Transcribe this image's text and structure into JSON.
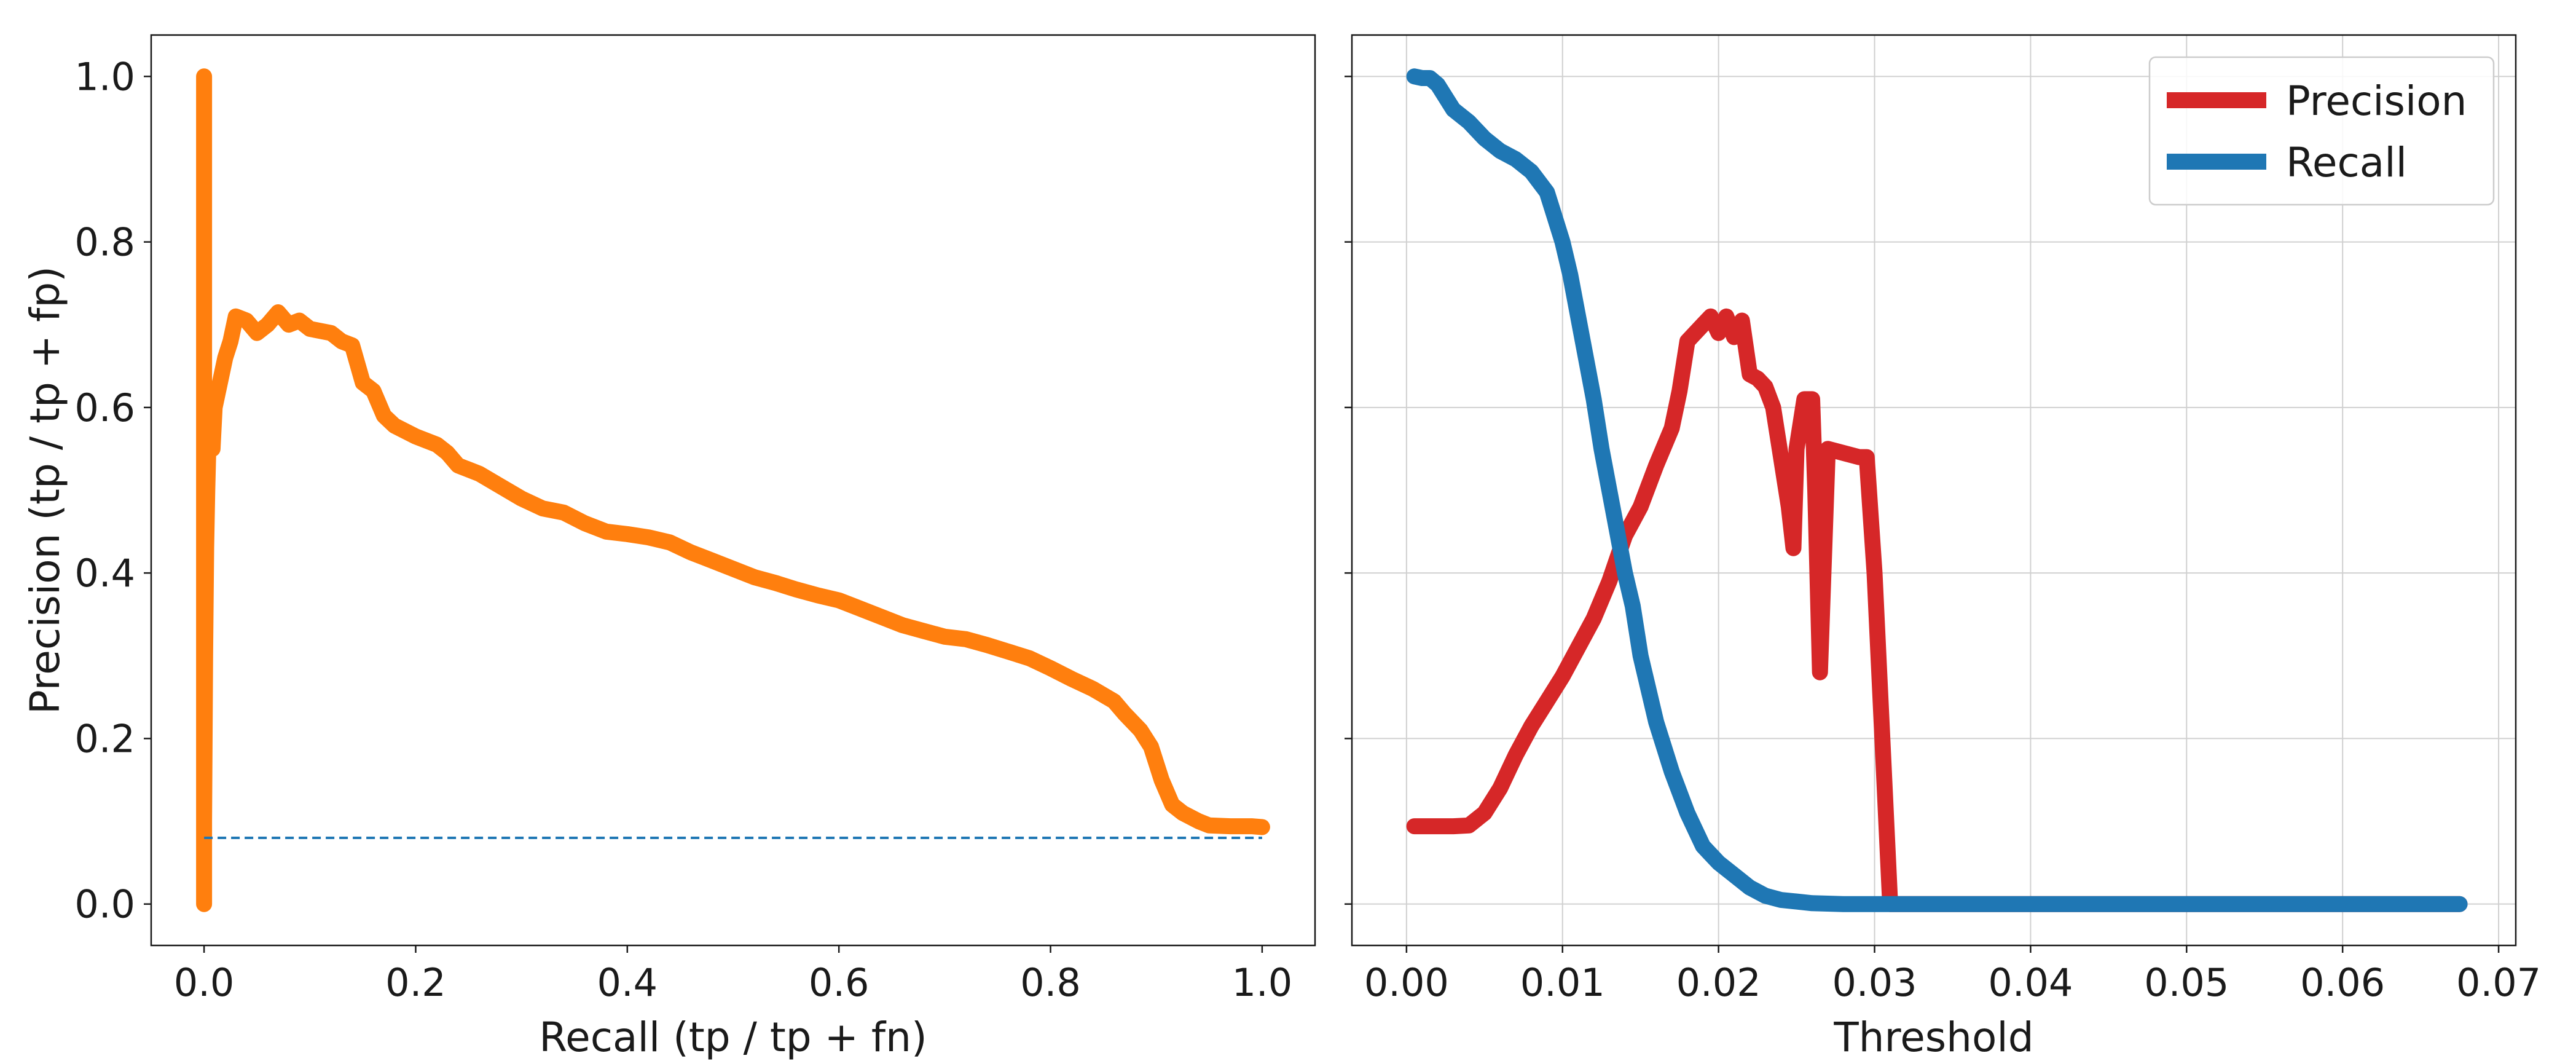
{
  "chart_data": [
    {
      "type": "line",
      "xlabel": "Recall (tp / tp + fn)",
      "ylabel": "Precision (tp / tp + fp)",
      "xlim": [
        -0.05,
        1.05
      ],
      "ylim": [
        -0.05,
        1.05
      ],
      "xticks": [
        0.0,
        0.2,
        0.4,
        0.6,
        0.8,
        1.0
      ],
      "yticks": [
        0.0,
        0.2,
        0.4,
        0.6,
        0.8,
        1.0
      ],
      "xtick_labels": [
        "0.0",
        "0.2",
        "0.4",
        "0.6",
        "0.8",
        "1.0"
      ],
      "ytick_labels": [
        "0.0",
        "0.2",
        "0.4",
        "0.6",
        "0.8",
        "1.0"
      ],
      "grid": false,
      "series": [
        {
          "color": "#ff7f0e",
          "style": "solid",
          "points": [
            [
              1.0,
              0.093
            ],
            [
              0.99,
              0.094
            ],
            [
              0.97,
              0.094
            ],
            [
              0.95,
              0.095
            ],
            [
              0.94,
              0.1
            ],
            [
              0.925,
              0.11
            ],
            [
              0.915,
              0.12
            ],
            [
              0.905,
              0.15
            ],
            [
              0.9,
              0.17
            ],
            [
              0.895,
              0.19
            ],
            [
              0.885,
              0.21
            ],
            [
              0.87,
              0.23
            ],
            [
              0.86,
              0.245
            ],
            [
              0.84,
              0.26
            ],
            [
              0.82,
              0.272
            ],
            [
              0.8,
              0.285
            ],
            [
              0.78,
              0.297
            ],
            [
              0.76,
              0.305
            ],
            [
              0.74,
              0.313
            ],
            [
              0.72,
              0.32
            ],
            [
              0.7,
              0.323
            ],
            [
              0.68,
              0.33
            ],
            [
              0.66,
              0.337
            ],
            [
              0.64,
              0.347
            ],
            [
              0.62,
              0.357
            ],
            [
              0.6,
              0.367
            ],
            [
              0.58,
              0.373
            ],
            [
              0.56,
              0.38
            ],
            [
              0.54,
              0.388
            ],
            [
              0.52,
              0.395
            ],
            [
              0.5,
              0.405
            ],
            [
              0.48,
              0.415
            ],
            [
              0.46,
              0.425
            ],
            [
              0.44,
              0.437
            ],
            [
              0.42,
              0.443
            ],
            [
              0.4,
              0.447
            ],
            [
              0.38,
              0.45
            ],
            [
              0.36,
              0.46
            ],
            [
              0.34,
              0.473
            ],
            [
              0.32,
              0.478
            ],
            [
              0.3,
              0.49
            ],
            [
              0.28,
              0.505
            ],
            [
              0.26,
              0.52
            ],
            [
              0.24,
              0.53
            ],
            [
              0.23,
              0.545
            ],
            [
              0.22,
              0.555
            ],
            [
              0.2,
              0.565
            ],
            [
              0.18,
              0.578
            ],
            [
              0.17,
              0.59
            ],
            [
              0.16,
              0.62
            ],
            [
              0.15,
              0.63
            ],
            [
              0.14,
              0.675
            ],
            [
              0.13,
              0.68
            ],
            [
              0.12,
              0.69
            ],
            [
              0.1,
              0.695
            ],
            [
              0.09,
              0.705
            ],
            [
              0.08,
              0.7
            ],
            [
              0.07,
              0.715
            ],
            [
              0.06,
              0.7
            ],
            [
              0.05,
              0.69
            ],
            [
              0.04,
              0.705
            ],
            [
              0.03,
              0.71
            ],
            [
              0.025,
              0.68
            ],
            [
              0.02,
              0.66
            ],
            [
              0.015,
              0.63
            ],
            [
              0.01,
              0.6
            ],
            [
              0.008,
              0.55
            ],
            [
              0.005,
              0.6
            ],
            [
              0.003,
              0.5
            ],
            [
              0.002,
              0.43
            ],
            [
              0.001,
              0.3
            ],
            [
              0.0,
              0.1
            ],
            [
              0.0,
              0.0
            ],
            [
              0.0,
              1.0
            ]
          ]
        },
        {
          "color": "#1f77b4",
          "style": "dashed",
          "points": [
            [
              0.0,
              0.08
            ],
            [
              1.0,
              0.08
            ]
          ]
        }
      ]
    },
    {
      "type": "line",
      "xlabel": "Threshold",
      "ylabel": "",
      "xlim": [
        -0.0035,
        0.0711
      ],
      "ylim": [
        -0.05,
        1.05
      ],
      "xticks": [
        0.0,
        0.01,
        0.02,
        0.03,
        0.04,
        0.05,
        0.06,
        0.07
      ],
      "yticks": [
        0.0,
        0.2,
        0.4,
        0.6,
        0.8,
        1.0
      ],
      "xtick_labels": [
        "0.00",
        "0.01",
        "0.02",
        "0.03",
        "0.04",
        "0.05",
        "0.06",
        "0.07"
      ],
      "grid": true,
      "legend_position": "top-right",
      "series": [
        {
          "name": "Precision",
          "color": "#d62728",
          "points": [
            [
              0.0005,
              0.094
            ],
            [
              0.002,
              0.094
            ],
            [
              0.003,
              0.094
            ],
            [
              0.004,
              0.095
            ],
            [
              0.005,
              0.11
            ],
            [
              0.006,
              0.14
            ],
            [
              0.007,
              0.18
            ],
            [
              0.008,
              0.215
            ],
            [
              0.009,
              0.245
            ],
            [
              0.01,
              0.275
            ],
            [
              0.011,
              0.31
            ],
            [
              0.012,
              0.345
            ],
            [
              0.013,
              0.39
            ],
            [
              0.014,
              0.445
            ],
            [
              0.015,
              0.48
            ],
            [
              0.016,
              0.53
            ],
            [
              0.017,
              0.575
            ],
            [
              0.0175,
              0.62
            ],
            [
              0.018,
              0.68
            ],
            [
              0.019,
              0.7
            ],
            [
              0.0195,
              0.71
            ],
            [
              0.02,
              0.69
            ],
            [
              0.0205,
              0.71
            ],
            [
              0.021,
              0.685
            ],
            [
              0.0215,
              0.705
            ],
            [
              0.022,
              0.64
            ],
            [
              0.0225,
              0.635
            ],
            [
              0.023,
              0.625
            ],
            [
              0.0235,
              0.6
            ],
            [
              0.024,
              0.54
            ],
            [
              0.0245,
              0.48
            ],
            [
              0.0248,
              0.43
            ],
            [
              0.025,
              0.55
            ],
            [
              0.0255,
              0.61
            ],
            [
              0.026,
              0.61
            ],
            [
              0.0262,
              0.5
            ],
            [
              0.0265,
              0.28
            ],
            [
              0.027,
              0.55
            ],
            [
              0.029,
              0.54
            ],
            [
              0.0295,
              0.54
            ],
            [
              0.03,
              0.4
            ],
            [
              0.0305,
              0.2
            ],
            [
              0.031,
              0.0
            ],
            [
              0.0675,
              0.0
            ]
          ]
        },
        {
          "name": "Recall",
          "color": "#1f77b4",
          "points": [
            [
              0.0005,
              1.0
            ],
            [
              0.001,
              0.998
            ],
            [
              0.0015,
              0.998
            ],
            [
              0.002,
              0.99
            ],
            [
              0.0025,
              0.975
            ],
            [
              0.003,
              0.96
            ],
            [
              0.004,
              0.945
            ],
            [
              0.005,
              0.925
            ],
            [
              0.006,
              0.91
            ],
            [
              0.007,
              0.9
            ],
            [
              0.008,
              0.885
            ],
            [
              0.009,
              0.86
            ],
            [
              0.0095,
              0.83
            ],
            [
              0.01,
              0.8
            ],
            [
              0.0105,
              0.76
            ],
            [
              0.011,
              0.71
            ],
            [
              0.0115,
              0.66
            ],
            [
              0.012,
              0.61
            ],
            [
              0.0125,
              0.55
            ],
            [
              0.013,
              0.5
            ],
            [
              0.0135,
              0.45
            ],
            [
              0.014,
              0.4
            ],
            [
              0.0145,
              0.36
            ],
            [
              0.015,
              0.3
            ],
            [
              0.0155,
              0.26
            ],
            [
              0.016,
              0.22
            ],
            [
              0.017,
              0.16
            ],
            [
              0.018,
              0.11
            ],
            [
              0.019,
              0.07
            ],
            [
              0.02,
              0.05
            ],
            [
              0.021,
              0.035
            ],
            [
              0.022,
              0.02
            ],
            [
              0.023,
              0.01
            ],
            [
              0.024,
              0.005
            ],
            [
              0.025,
              0.003
            ],
            [
              0.026,
              0.001
            ],
            [
              0.028,
              0.0
            ],
            [
              0.03,
              0.0
            ],
            [
              0.0675,
              0.0
            ]
          ]
        }
      ]
    }
  ]
}
